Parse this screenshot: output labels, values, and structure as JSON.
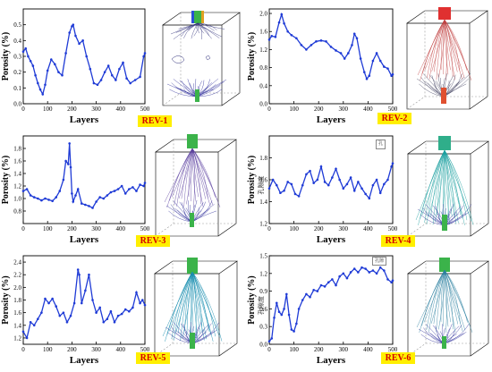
{
  "chart_data": [
    {
      "type": "line",
      "id": "rev1",
      "tag": "REV-1",
      "xlabel": "Layers",
      "ylabel": "Porosity (%)",
      "xlim": [
        0,
        500
      ],
      "ylim": [
        0,
        0.6
      ],
      "xticks": [
        0,
        100,
        200,
        300,
        400,
        500
      ],
      "yticks": [
        0.0,
        0.1,
        0.2,
        0.3,
        0.4,
        0.5
      ],
      "ytick_labels": [
        "0.0",
        "0.1",
        "0.2",
        "0.3",
        "0.4",
        "0.5"
      ],
      "secondary_ylabel": "",
      "x": [
        0,
        10,
        20,
        30,
        40,
        50,
        60,
        70,
        80,
        90,
        100,
        115,
        130,
        145,
        160,
        175,
        190,
        200,
        205,
        215,
        230,
        245,
        260,
        275,
        290,
        305,
        320,
        335,
        350,
        365,
        380,
        395,
        410,
        425,
        440,
        460,
        480,
        495,
        500
      ],
      "y": [
        0.33,
        0.35,
        0.3,
        0.27,
        0.24,
        0.18,
        0.13,
        0.09,
        0.06,
        0.12,
        0.21,
        0.28,
        0.25,
        0.2,
        0.18,
        0.32,
        0.45,
        0.49,
        0.5,
        0.43,
        0.38,
        0.4,
        0.3,
        0.22,
        0.13,
        0.12,
        0.15,
        0.2,
        0.24,
        0.18,
        0.15,
        0.22,
        0.26,
        0.16,
        0.13,
        0.15,
        0.17,
        0.3,
        0.32
      ]
    },
    {
      "type": "line",
      "id": "rev2",
      "tag": "REV-2",
      "xlabel": "Layers",
      "ylabel": "Porosity (%)",
      "xlim": [
        0,
        500
      ],
      "ylim": [
        0.0,
        2.1
      ],
      "xticks": [
        0,
        100,
        200,
        300,
        400,
        500
      ],
      "yticks": [
        0.0,
        0.4,
        0.8,
        1.2,
        1.6,
        2.0
      ],
      "ytick_labels": [
        "0.0",
        "0.4",
        "0.8",
        "1.2",
        "1.6",
        "2.0"
      ],
      "secondary_ylabel": "",
      "x": [
        0,
        10,
        25,
        40,
        50,
        60,
        75,
        90,
        110,
        130,
        150,
        170,
        190,
        210,
        230,
        250,
        270,
        290,
        305,
        320,
        335,
        345,
        355,
        370,
        385,
        395,
        405,
        420,
        435,
        450,
        465,
        480,
        495,
        500
      ],
      "y": [
        1.42,
        1.5,
        1.48,
        1.8,
        1.98,
        1.78,
        1.6,
        1.52,
        1.45,
        1.3,
        1.2,
        1.3,
        1.38,
        1.4,
        1.38,
        1.26,
        1.18,
        1.12,
        1.0,
        1.12,
        1.3,
        1.55,
        1.45,
        1.0,
        0.7,
        0.55,
        0.62,
        0.95,
        1.12,
        0.95,
        0.82,
        0.78,
        0.62,
        0.65
      ]
    },
    {
      "type": "line",
      "id": "rev3",
      "tag": "REV-3",
      "xlabel": "Layers",
      "ylabel": "Porosity (%)",
      "xlim": [
        0,
        500
      ],
      "ylim": [
        0.6,
        2.0
      ],
      "xticks": [
        0,
        100,
        200,
        300,
        400,
        500
      ],
      "yticks": [
        0.8,
        1.0,
        1.2,
        1.4,
        1.6,
        1.8
      ],
      "ytick_labels": [
        "0.8",
        "1.0",
        "1.2",
        "1.4",
        "1.6",
        "1.8"
      ],
      "secondary_ylabel": "",
      "x": [
        0,
        15,
        30,
        45,
        60,
        75,
        90,
        105,
        120,
        135,
        150,
        165,
        175,
        185,
        190,
        195,
        200,
        205,
        215,
        225,
        240,
        255,
        270,
        285,
        300,
        315,
        330,
        345,
        360,
        375,
        390,
        405,
        420,
        435,
        450,
        465,
        480,
        495,
        500
      ],
      "y": [
        1.12,
        1.15,
        1.05,
        1.02,
        1.0,
        0.97,
        1.0,
        0.98,
        0.96,
        1.02,
        1.12,
        1.3,
        1.6,
        1.55,
        1.88,
        1.5,
        1.08,
        0.95,
        1.05,
        1.15,
        0.92,
        0.9,
        0.88,
        0.85,
        0.95,
        1.02,
        1.0,
        1.05,
        1.1,
        1.12,
        1.15,
        1.2,
        1.08,
        1.15,
        1.18,
        1.12,
        1.22,
        1.2,
        1.25
      ]
    },
    {
      "type": "line",
      "id": "rev4",
      "tag": "REV-4",
      "xlabel": "Layers",
      "ylabel": "Porosity (%)",
      "xlim": [
        0,
        500
      ],
      "ylim": [
        1.2,
        2.0
      ],
      "xticks": [
        0,
        100,
        200,
        300,
        400,
        500
      ],
      "yticks": [
        1.2,
        1.4,
        1.6,
        1.8
      ],
      "ytick_labels": [
        "1.2",
        "1.4",
        "1.6",
        "1.8"
      ],
      "secondary_ylabel": "孔隙度",
      "x": [
        0,
        15,
        30,
        45,
        60,
        75,
        90,
        105,
        120,
        135,
        150,
        165,
        180,
        195,
        210,
        225,
        240,
        255,
        270,
        285,
        300,
        315,
        330,
        345,
        360,
        375,
        390,
        405,
        420,
        435,
        450,
        465,
        480,
        495,
        500
      ],
      "y": [
        1.52,
        1.6,
        1.55,
        1.48,
        1.5,
        1.58,
        1.56,
        1.47,
        1.45,
        1.55,
        1.65,
        1.68,
        1.57,
        1.6,
        1.72,
        1.58,
        1.55,
        1.62,
        1.7,
        1.6,
        1.52,
        1.56,
        1.62,
        1.5,
        1.58,
        1.52,
        1.47,
        1.43,
        1.55,
        1.6,
        1.48,
        1.56,
        1.6,
        1.72,
        1.75
      ]
    },
    {
      "type": "line",
      "id": "rev5",
      "tag": "REV-5",
      "xlabel": "Layers",
      "ylabel": "Porosity (%)",
      "xlim": [
        0,
        500
      ],
      "ylim": [
        1.1,
        2.5
      ],
      "xticks": [
        0,
        100,
        200,
        300,
        400,
        500
      ],
      "yticks": [
        1.2,
        1.4,
        1.6,
        1.8,
        2.0,
        2.2,
        2.4
      ],
      "ytick_labels": [
        "1.2",
        "1.4",
        "1.6",
        "1.8",
        "2.0",
        "2.2",
        "2.4"
      ],
      "secondary_ylabel": "",
      "x": [
        0,
        15,
        30,
        45,
        60,
        75,
        90,
        105,
        120,
        135,
        150,
        165,
        180,
        195,
        210,
        225,
        230,
        240,
        255,
        270,
        285,
        300,
        315,
        330,
        345,
        360,
        375,
        390,
        405,
        420,
        435,
        450,
        465,
        480,
        490,
        500
      ],
      "y": [
        1.3,
        1.2,
        1.45,
        1.4,
        1.5,
        1.6,
        1.82,
        1.75,
        1.82,
        1.7,
        1.55,
        1.6,
        1.45,
        1.55,
        1.75,
        2.28,
        2.2,
        1.75,
        1.95,
        2.2,
        1.8,
        1.6,
        1.68,
        1.45,
        1.5,
        1.62,
        1.45,
        1.55,
        1.58,
        1.65,
        1.62,
        1.68,
        1.92,
        1.75,
        1.8,
        1.72
      ]
    },
    {
      "type": "line",
      "id": "rev6",
      "tag": "REV-6",
      "xlabel": "Layers",
      "ylabel": "Porosity (%)",
      "xlim": [
        0,
        500
      ],
      "ylim": [
        0.0,
        1.5
      ],
      "xticks": [
        0,
        100,
        200,
        300,
        400,
        500
      ],
      "yticks": [
        0.0,
        0.3,
        0.6,
        0.9,
        1.2,
        1.5
      ],
      "ytick_labels": [
        "0.0",
        "0.3",
        "0.6",
        "0.9",
        "1.2",
        "1.5"
      ],
      "secondary_ylabel": "孔隙度",
      "x": [
        0,
        10,
        20,
        30,
        40,
        50,
        60,
        70,
        80,
        90,
        100,
        110,
        120,
        135,
        150,
        165,
        180,
        195,
        210,
        225,
        240,
        255,
        270,
        285,
        300,
        315,
        330,
        345,
        360,
        375,
        390,
        405,
        420,
        435,
        450,
        465,
        480,
        495,
        500
      ],
      "y": [
        0.05,
        0.1,
        0.45,
        0.7,
        0.55,
        0.5,
        0.6,
        0.85,
        0.5,
        0.25,
        0.22,
        0.35,
        0.6,
        0.75,
        0.85,
        0.8,
        0.92,
        0.9,
        1.0,
        0.98,
        1.05,
        1.1,
        1.0,
        1.15,
        1.2,
        1.12,
        1.22,
        1.28,
        1.22,
        1.3,
        1.28,
        1.22,
        1.25,
        1.2,
        1.3,
        1.25,
        1.1,
        1.05,
        1.08
      ]
    }
  ],
  "colors": {
    "series": "#1f3bd6",
    "tag_bg": "#ffef00",
    "tag_text": "#d40000"
  },
  "legend_box_text": "孔隙"
}
